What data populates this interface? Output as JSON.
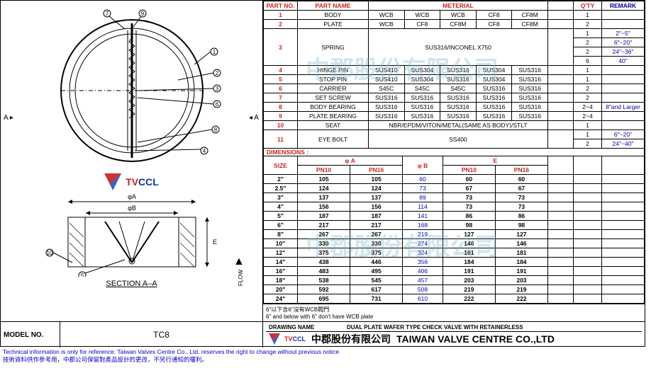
{
  "headers": {
    "partNo": "PART NO.",
    "partName": "PART NAME",
    "material": "METERIAL",
    "qty": "Q'TY",
    "remark": "REMARK"
  },
  "parts": [
    {
      "no": "1",
      "name": "BODY",
      "mats": [
        "WCB",
        "WCB",
        "WCB",
        "CF8",
        "CF8M"
      ],
      "qty": "1",
      "remark": ""
    },
    {
      "no": "2",
      "name": "PLATE",
      "mats": [
        "WCB",
        "CF8",
        "CF8M",
        "CF8",
        "CF8M"
      ],
      "qty": "2",
      "remark": ""
    },
    {
      "no": "3",
      "name": "SPRING",
      "mats": [
        "SUS316/INCONEL X750"
      ],
      "span": 5,
      "qtys": [
        "1",
        "2",
        "2",
        "6"
      ],
      "remarks": [
        "2\"~5\"",
        "6\"~20\"",
        "24\"~36\"",
        "40\""
      ]
    },
    {
      "no": "4",
      "name": "HINGE PIN",
      "mats": [
        "SUS410",
        "SUS304",
        "SUS316",
        "SUS304",
        "SUS316"
      ],
      "qty": "1",
      "remark": ""
    },
    {
      "no": "5",
      "name": "STOP  PIN",
      "mats": [
        "SUS410",
        "SUS304",
        "SUS316",
        "SUS304",
        "SUS316"
      ],
      "qty": "1",
      "remark": ""
    },
    {
      "no": "6",
      "name": "CARRIER",
      "mats": [
        "S45C",
        "S45C",
        "S45C",
        "SUS316",
        "SUS316"
      ],
      "qty": "2",
      "remark": ""
    },
    {
      "no": "7",
      "name": "SET SCREW",
      "mats": [
        "SUS316",
        "SUS316",
        "SUS316",
        "SUS316",
        "SUS316"
      ],
      "qty": "2",
      "remark": ""
    },
    {
      "no": "8",
      "name": "BODY BEARING",
      "mats": [
        "SUS316",
        "SUS316",
        "SUS316",
        "SUS316",
        "SUS316"
      ],
      "qty": "2~4",
      "remark": "8\"and Larger"
    },
    {
      "no": "9",
      "name": "PLATE BEARING",
      "mats": [
        "SUS316",
        "SUS316",
        "SUS316",
        "SUS316",
        "SUS316"
      ],
      "qty": "2~4",
      "remark": ""
    },
    {
      "no": "10",
      "name": "SEAT",
      "mats": [
        "NBR/EPDM/VITON/METAL(SAME AS BODY)/STLT"
      ],
      "span": 5,
      "qty": "1",
      "remark": ""
    },
    {
      "no": "11",
      "name": "EYE BOLT",
      "mats": [
        "SS400"
      ],
      "span": 5,
      "qtys": [
        "1",
        "2"
      ],
      "remarks": [
        "6\"~20\"",
        "24\"~40\""
      ]
    }
  ],
  "dimHeader": "DIMENSIONS :",
  "dimCols": {
    "size": "SIZE",
    "phiA": "φ A",
    "phiB": "φ B",
    "E": "E",
    "pn10": "PN10",
    "pn16": "PN16"
  },
  "dims": [
    {
      "size": "2\"",
      "a10": "105",
      "a16": "105",
      "b": "60",
      "e10": "60",
      "e16": "60"
    },
    {
      "size": "2.5\"",
      "a10": "124",
      "a16": "124",
      "b": "73",
      "e10": "67",
      "e16": "67"
    },
    {
      "size": "3\"",
      "a10": "137",
      "a16": "137",
      "b": "89",
      "e10": "73",
      "e16": "73"
    },
    {
      "size": "4\"",
      "a10": "156",
      "a16": "156",
      "b": "114",
      "e10": "73",
      "e16": "73"
    },
    {
      "size": "5\"",
      "a10": "187",
      "a16": "187",
      "b": "141",
      "e10": "86",
      "e16": "86"
    },
    {
      "size": "6\"",
      "a10": "217",
      "a16": "217",
      "b": "168",
      "e10": "98",
      "e16": "98"
    },
    {
      "size": "8\"",
      "a10": "267",
      "a16": "267",
      "b": "219",
      "e10": "127",
      "e16": "127"
    },
    {
      "size": "10\"",
      "a10": "330",
      "a16": "330",
      "b": "274",
      "e10": "146",
      "e16": "146"
    },
    {
      "size": "12\"",
      "a10": "375",
      "a16": "375",
      "b": "324",
      "e10": "181",
      "e16": "181"
    },
    {
      "size": "14\"",
      "a10": "438",
      "a16": "446",
      "b": "356",
      "e10": "184",
      "e16": "184"
    },
    {
      "size": "16\"",
      "a10": "483",
      "a16": "495",
      "b": "406",
      "e10": "191",
      "e16": "191"
    },
    {
      "size": "18\"",
      "a10": "538",
      "a16": "545",
      "b": "457",
      "e10": "203",
      "e16": "203"
    },
    {
      "size": "20\"",
      "a10": "592",
      "a16": "617",
      "b": "508",
      "e10": "219",
      "e16": "219"
    },
    {
      "size": "24\"",
      "a10": "695",
      "a16": "731",
      "b": "610",
      "e10": "222",
      "e16": "222"
    }
  ],
  "note_zh": "6\"以下含6\"沒有WCB閥門",
  "note_en": "6\" and below with 6\" don't have WCB plate",
  "model": {
    "label": "MODEL NO.",
    "value": "TC8"
  },
  "drawingName": {
    "label": "DRAWING NAME",
    "value": "DUAL PLATE WAFER TYPE CHECK VALVE WITH RETAINERLESS"
  },
  "company_zh": "中郡股份有限公司",
  "company_en": "TAIWAN VALVE CENTRE CO.,LTD",
  "logoText": {
    "tv": "TV",
    "ccl": "CCL"
  },
  "footer_en": "Technical information is only for reference. Taiwan Valves Centre Co., Ltd. reserves the right to change without previous notice",
  "footer_zh": "技術資料供作參考用，中郡公司保留對產品設計的更改，不另行通知的權利。",
  "section": "SECTION A–A",
  "flow": "FLOW",
  "watermark": "中郡股份有限公司",
  "diagram": {
    "callouts_top": [
      "7",
      "9",
      "1",
      "2",
      "3",
      "6",
      "8",
      "4"
    ],
    "callouts_bottom": [
      "5",
      "10"
    ],
    "phiA": "φA",
    "phiB": "φB",
    "E": "E",
    "A": "A",
    "arrowUp": "▲"
  }
}
